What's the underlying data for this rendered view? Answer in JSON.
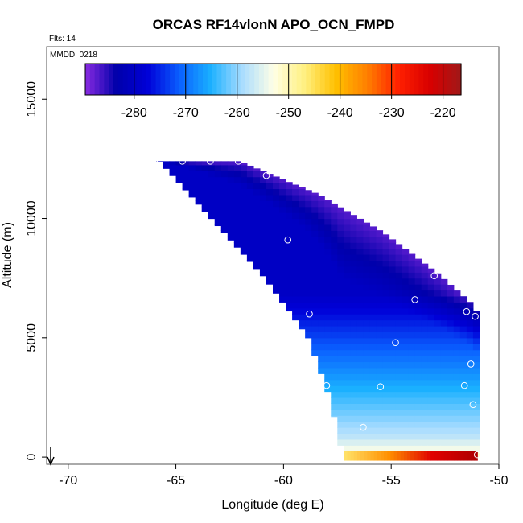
{
  "chart_data": {
    "type": "heatmap",
    "title": "ORCAS RF14vlonN APO_OCN_FMPD",
    "annotations": {
      "flights": "Flts: 14",
      "date": "MMDD: 0218"
    },
    "xlabel": "Longitude (deg E)",
    "ylabel": "Altitude (m)",
    "xlim": [
      -71,
      -50
    ],
    "ylim": [
      -300,
      17200
    ],
    "x_ticks": [
      -70,
      -65,
      -60,
      -55,
      -50
    ],
    "x_tick_labels": [
      "-70",
      "-65",
      "-60",
      "-55",
      "-50"
    ],
    "y_ticks": [
      0,
      5000,
      10000,
      15000
    ],
    "y_tick_labels": [
      "0",
      "5000",
      "10000",
      "15000"
    ],
    "colorbar": {
      "range": [
        -289.5,
        -216.5
      ],
      "ticks": [
        -280,
        -270,
        -260,
        -250,
        -240,
        -230,
        -220
      ],
      "tick_labels": [
        "-280",
        "-270",
        "-260",
        "-250",
        "-240",
        "-230",
        "-220"
      ],
      "colors": [
        "#8a2be2",
        "#0000aa",
        "#0000d8",
        "#0a5fff",
        "#1ab0ff",
        "#a8dcff",
        "#ffffe6",
        "#fff080",
        "#ffc000",
        "#ff7f00",
        "#ff2000",
        "#d80000",
        "#a01818"
      ]
    },
    "domain": {
      "upper_boundary": [
        [
          -65.9,
          12400
        ],
        [
          -62.2,
          12400
        ],
        [
          -58.5,
          11000
        ],
        [
          -55.5,
          9400
        ],
        [
          -53.0,
          7700
        ],
        [
          -51.5,
          6500
        ],
        [
          -51.0,
          5900
        ]
      ],
      "lower_boundary": [
        [
          -65.9,
          12400
        ],
        [
          -63.5,
          10000
        ],
        [
          -61.0,
          7500
        ],
        [
          -59.0,
          5000
        ],
        [
          -58.0,
          2500
        ],
        [
          -57.5,
          500
        ],
        [
          -57.2,
          100
        ]
      ],
      "bottom": [
        -57.2,
        -51.0
      ]
    },
    "field_model": {
      "min_value_center": [
        [
          -64,
          11000
        ],
        [
          -56,
          7200
        ],
        [
          -52,
          6500
        ]
      ],
      "surface_value": -250
    },
    "sample_points": [
      [
        -66.0,
        12400
      ],
      [
        -64.7,
        12400
      ],
      [
        -63.4,
        12400
      ],
      [
        -62.1,
        12400
      ],
      [
        -60.8,
        11800
      ],
      [
        -59.8,
        9100
      ],
      [
        -53.0,
        7600
      ],
      [
        -53.9,
        6600
      ],
      [
        -51.5,
        6100
      ],
      [
        -51.1,
        5900
      ],
      [
        -58.8,
        6000
      ],
      [
        -54.8,
        4800
      ],
      [
        -51.3,
        3900
      ],
      [
        -58.0,
        3000
      ],
      [
        -55.5,
        2950
      ],
      [
        -51.6,
        3000
      ],
      [
        -51.2,
        2200
      ],
      [
        -56.3,
        1250
      ],
      [
        -51.0,
        100
      ]
    ],
    "surface_strip": {
      "x_range": [
        -57.2,
        -51.0
      ],
      "colors_from_to": [
        "#ffe066",
        "#ff9000",
        "#e00000",
        "#b00000"
      ]
    }
  }
}
